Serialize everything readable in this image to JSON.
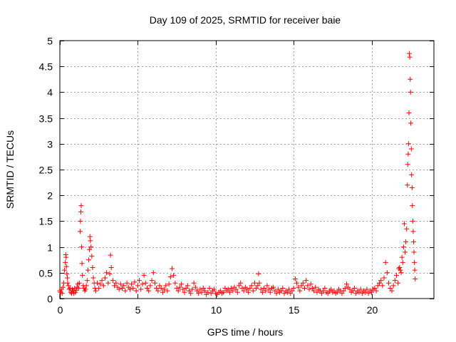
{
  "chart_data": {
    "type": "scatter",
    "title": "Day 109 of 2025, SRMTID for receiver baie",
    "xlabel": "GPS time / hours",
    "ylabel": "SRMTID / TECUs",
    "xlim": [
      0,
      24
    ],
    "ylim": [
      0,
      5
    ],
    "xticks": [
      0,
      5,
      10,
      15,
      20
    ],
    "xtick_labels": [
      "0",
      "5",
      "10",
      "15",
      "20"
    ],
    "yticks": [
      0,
      0.5,
      1,
      1.5,
      2,
      2.5,
      3,
      3.5,
      4,
      4.5,
      5
    ],
    "ytick_labels": [
      "0",
      "0.5",
      "1",
      "1.5",
      "2",
      "2.5",
      "3",
      "3.5",
      "4",
      "4.5",
      "5"
    ],
    "grid": true,
    "marker": "+",
    "series": [
      {
        "name": "SRMTID",
        "color": "#ff0000",
        "points": [
          [
            0.0,
            0.15
          ],
          [
            0.05,
            0.12
          ],
          [
            0.1,
            0.18
          ],
          [
            0.15,
            0.1
          ],
          [
            0.2,
            0.22
          ],
          [
            0.25,
            0.3
          ],
          [
            0.3,
            0.55
          ],
          [
            0.35,
            0.7
          ],
          [
            0.38,
            0.85
          ],
          [
            0.4,
            0.8
          ],
          [
            0.42,
            0.62
          ],
          [
            0.45,
            0.48
          ],
          [
            0.48,
            0.4
          ],
          [
            0.5,
            0.3
          ],
          [
            0.55,
            0.25
          ],
          [
            0.6,
            0.18
          ],
          [
            0.65,
            0.2
          ],
          [
            0.7,
            0.12
          ],
          [
            0.75,
            0.1
          ],
          [
            0.8,
            0.18
          ],
          [
            0.85,
            0.15
          ],
          [
            0.9,
            0.1
          ],
          [
            0.95,
            0.2
          ],
          [
            1.0,
            0.12
          ],
          [
            1.05,
            0.16
          ],
          [
            1.1,
            0.22
          ],
          [
            1.15,
            0.28
          ],
          [
            1.2,
            0.2
          ],
          [
            1.25,
            0.3
          ],
          [
            1.3,
            1.3
          ],
          [
            1.32,
            1.5
          ],
          [
            1.35,
            1.68
          ],
          [
            1.37,
            1.8
          ],
          [
            1.4,
            1.0
          ],
          [
            1.42,
            0.68
          ],
          [
            1.45,
            0.45
          ],
          [
            1.5,
            0.25
          ],
          [
            1.55,
            0.2
          ],
          [
            1.6,
            0.15
          ],
          [
            1.65,
            0.18
          ],
          [
            1.7,
            0.25
          ],
          [
            1.75,
            0.35
          ],
          [
            1.8,
            0.55
          ],
          [
            1.85,
            0.75
          ],
          [
            1.9,
            0.95
          ],
          [
            1.93,
            1.2
          ],
          [
            1.96,
            1.12
          ],
          [
            2.0,
            1.0
          ],
          [
            2.05,
            0.82
          ],
          [
            2.1,
            0.6
          ],
          [
            2.15,
            0.4
          ],
          [
            2.2,
            0.3
          ],
          [
            2.25,
            0.2
          ],
          [
            2.3,
            0.15
          ],
          [
            2.4,
            0.3
          ],
          [
            2.5,
            0.2
          ],
          [
            2.6,
            0.28
          ],
          [
            2.7,
            0.35
          ],
          [
            2.8,
            0.25
          ],
          [
            2.9,
            0.4
          ],
          [
            3.0,
            0.5
          ],
          [
            3.1,
            0.3
          ],
          [
            3.2,
            0.48
          ],
          [
            3.25,
            0.84
          ],
          [
            3.3,
            0.6
          ],
          [
            3.4,
            0.35
          ],
          [
            3.5,
            0.25
          ],
          [
            3.6,
            0.3
          ],
          [
            3.7,
            0.22
          ],
          [
            3.8,
            0.18
          ],
          [
            3.9,
            0.28
          ],
          [
            4.0,
            0.2
          ],
          [
            4.1,
            0.25
          ],
          [
            4.2,
            0.15
          ],
          [
            4.3,
            0.3
          ],
          [
            4.4,
            0.22
          ],
          [
            4.5,
            0.18
          ],
          [
            4.6,
            0.28
          ],
          [
            4.7,
            0.2
          ],
          [
            4.8,
            0.32
          ],
          [
            4.9,
            0.15
          ],
          [
            5.0,
            0.25
          ],
          [
            5.1,
            0.35
          ],
          [
            5.2,
            0.18
          ],
          [
            5.3,
            0.28
          ],
          [
            5.4,
            0.45
          ],
          [
            5.5,
            0.3
          ],
          [
            5.6,
            0.2
          ],
          [
            5.7,
            0.15
          ],
          [
            5.8,
            0.25
          ],
          [
            5.9,
            0.35
          ],
          [
            6.0,
            0.5
          ],
          [
            6.1,
            0.3
          ],
          [
            6.2,
            0.2
          ],
          [
            6.3,
            0.15
          ],
          [
            6.4,
            0.25
          ],
          [
            6.5,
            0.2
          ],
          [
            6.6,
            0.12
          ],
          [
            6.7,
            0.18
          ],
          [
            6.8,
            0.25
          ],
          [
            6.9,
            0.15
          ],
          [
            7.0,
            0.28
          ],
          [
            7.1,
            0.42
          ],
          [
            7.2,
            0.58
          ],
          [
            7.3,
            0.45
          ],
          [
            7.4,
            0.3
          ],
          [
            7.5,
            0.2
          ],
          [
            7.6,
            0.15
          ],
          [
            7.7,
            0.22
          ],
          [
            7.8,
            0.28
          ],
          [
            7.9,
            0.18
          ],
          [
            8.0,
            0.12
          ],
          [
            8.1,
            0.2
          ],
          [
            8.2,
            0.25
          ],
          [
            8.3,
            0.15
          ],
          [
            8.4,
            0.1
          ],
          [
            8.5,
            0.18
          ],
          [
            8.6,
            0.3
          ],
          [
            8.7,
            0.22
          ],
          [
            8.8,
            0.15
          ],
          [
            8.9,
            0.1
          ],
          [
            9.0,
            0.18
          ],
          [
            9.1,
            0.12
          ],
          [
            9.2,
            0.2
          ],
          [
            9.3,
            0.15
          ],
          [
            9.4,
            0.08
          ],
          [
            9.5,
            0.12
          ],
          [
            9.6,
            0.2
          ],
          [
            9.7,
            0.1
          ],
          [
            9.8,
            0.15
          ],
          [
            9.9,
            0.18
          ],
          [
            10.0,
            0.1
          ],
          [
            10.1,
            0.08
          ],
          [
            10.2,
            0.12
          ],
          [
            10.3,
            0.15
          ],
          [
            10.4,
            0.1
          ],
          [
            10.5,
            0.12
          ],
          [
            10.6,
            0.2
          ],
          [
            10.7,
            0.15
          ],
          [
            10.8,
            0.18
          ],
          [
            10.9,
            0.12
          ],
          [
            11.0,
            0.2
          ],
          [
            11.1,
            0.15
          ],
          [
            11.2,
            0.22
          ],
          [
            11.3,
            0.18
          ],
          [
            11.4,
            0.12
          ],
          [
            11.5,
            0.25
          ],
          [
            11.6,
            0.3
          ],
          [
            11.7,
            0.2
          ],
          [
            11.8,
            0.15
          ],
          [
            11.9,
            0.22
          ],
          [
            12.0,
            0.18
          ],
          [
            12.1,
            0.12
          ],
          [
            12.2,
            0.2
          ],
          [
            12.3,
            0.25
          ],
          [
            12.4,
            0.15
          ],
          [
            12.5,
            0.3
          ],
          [
            12.6,
            0.2
          ],
          [
            12.7,
            0.25
          ],
          [
            12.75,
            0.48
          ],
          [
            12.8,
            0.3
          ],
          [
            12.9,
            0.18
          ],
          [
            13.0,
            0.12
          ],
          [
            13.1,
            0.2
          ],
          [
            13.2,
            0.15
          ],
          [
            13.3,
            0.25
          ],
          [
            13.4,
            0.18
          ],
          [
            13.5,
            0.12
          ],
          [
            13.6,
            0.2
          ],
          [
            13.7,
            0.22
          ],
          [
            13.8,
            0.15
          ],
          [
            13.9,
            0.1
          ],
          [
            14.0,
            0.18
          ],
          [
            14.1,
            0.12
          ],
          [
            14.2,
            0.15
          ],
          [
            14.3,
            0.2
          ],
          [
            14.4,
            0.1
          ],
          [
            14.5,
            0.15
          ],
          [
            14.6,
            0.12
          ],
          [
            14.7,
            0.18
          ],
          [
            14.8,
            0.1
          ],
          [
            14.9,
            0.15
          ],
          [
            15.0,
            0.2
          ],
          [
            15.1,
            0.38
          ],
          [
            15.2,
            0.3
          ],
          [
            15.3,
            0.22
          ],
          [
            15.4,
            0.15
          ],
          [
            15.5,
            0.25
          ],
          [
            15.6,
            0.3
          ],
          [
            15.7,
            0.2
          ],
          [
            15.8,
            0.35
          ],
          [
            15.9,
            0.25
          ],
          [
            16.0,
            0.18
          ],
          [
            16.1,
            0.28
          ],
          [
            16.2,
            0.2
          ],
          [
            16.3,
            0.15
          ],
          [
            16.4,
            0.22
          ],
          [
            16.5,
            0.12
          ],
          [
            16.6,
            0.18
          ],
          [
            16.7,
            0.15
          ],
          [
            16.8,
            0.1
          ],
          [
            16.9,
            0.15
          ],
          [
            17.0,
            0.2
          ],
          [
            17.1,
            0.12
          ],
          [
            17.2,
            0.1
          ],
          [
            17.3,
            0.15
          ],
          [
            17.4,
            0.18
          ],
          [
            17.5,
            0.12
          ],
          [
            17.6,
            0.15
          ],
          [
            17.7,
            0.1
          ],
          [
            17.8,
            0.12
          ],
          [
            17.9,
            0.18
          ],
          [
            18.0,
            0.15
          ],
          [
            18.1,
            0.1
          ],
          [
            18.2,
            0.15
          ],
          [
            18.3,
            0.2
          ],
          [
            18.4,
            0.28
          ],
          [
            18.5,
            0.22
          ],
          [
            18.6,
            0.18
          ],
          [
            18.7,
            0.12
          ],
          [
            18.8,
            0.15
          ],
          [
            18.9,
            0.2
          ],
          [
            19.0,
            0.1
          ],
          [
            19.1,
            0.15
          ],
          [
            19.2,
            0.12
          ],
          [
            19.3,
            0.18
          ],
          [
            19.4,
            0.1
          ],
          [
            19.5,
            0.15
          ],
          [
            19.6,
            0.12
          ],
          [
            19.7,
            0.18
          ],
          [
            19.8,
            0.1
          ],
          [
            19.9,
            0.15
          ],
          [
            20.0,
            0.12
          ],
          [
            20.1,
            0.18
          ],
          [
            20.2,
            0.2
          ],
          [
            20.3,
            0.15
          ],
          [
            20.4,
            0.25
          ],
          [
            20.5,
            0.3
          ],
          [
            20.6,
            0.35
          ],
          [
            20.7,
            0.25
          ],
          [
            20.8,
            0.4
          ],
          [
            20.9,
            0.7
          ],
          [
            21.0,
            0.5
          ],
          [
            21.1,
            0.3
          ],
          [
            21.2,
            0.2
          ],
          [
            21.3,
            0.15
          ],
          [
            21.4,
            0.25
          ],
          [
            21.5,
            0.35
          ],
          [
            21.6,
            0.45
          ],
          [
            21.7,
            0.3
          ],
          [
            21.75,
            0.58
          ],
          [
            21.8,
            0.6
          ],
          [
            21.85,
            0.55
          ],
          [
            21.9,
            0.5
          ],
          [
            21.95,
            0.8
          ],
          [
            22.0,
            0.7
          ],
          [
            22.05,
            1.0
          ],
          [
            22.1,
            1.45
          ],
          [
            22.15,
            0.9
          ],
          [
            22.2,
            1.1
          ],
          [
            22.25,
            1.35
          ],
          [
            22.3,
            2.2
          ],
          [
            22.32,
            2.6
          ],
          [
            22.35,
            2.8
          ],
          [
            22.37,
            3.0
          ],
          [
            22.4,
            3.6
          ],
          [
            22.42,
            4.75
          ],
          [
            22.45,
            4.68
          ],
          [
            22.48,
            4.25
          ],
          [
            22.5,
            4.0
          ],
          [
            22.52,
            3.4
          ],
          [
            22.55,
            2.9
          ],
          [
            22.57,
            2.4
          ],
          [
            22.6,
            2.15
          ],
          [
            22.62,
            1.8
          ],
          [
            22.65,
            1.5
          ],
          [
            22.67,
            1.3
          ],
          [
            22.7,
            1.1
          ],
          [
            22.72,
            0.9
          ],
          [
            22.75,
            0.7
          ],
          [
            22.77,
            0.55
          ],
          [
            22.8,
            0.38
          ]
        ]
      }
    ]
  }
}
